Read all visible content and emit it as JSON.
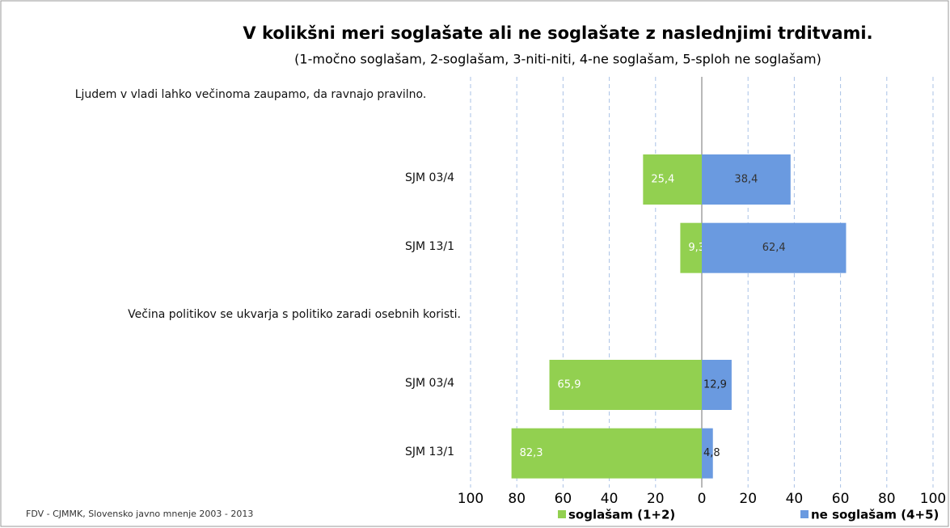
{
  "chart_data": {
    "type": "diverging-bar",
    "title": "V kolikšni meri soglašate ali ne soglašate z naslednjimi trditvami.",
    "subtitle": "(1-močno soglašam, 2-soglašam, 3-niti-niti, 4-ne soglašam, 5-sploh ne soglašam)",
    "source": "FDV - CJMMK, Slovensko javno mnenje 2003 - 2013",
    "categories": [
      "Ljudem v vladi lahko večinoma zaupamo, da ravnajo pravilno.",
      "SJM 03/4",
      "SJM 13/1",
      "Večina politikov se ukvarja s politiko zaradi osebnih koristi.",
      "SJM 03/4",
      "SJM 13/1"
    ],
    "series": [
      {
        "name": "soglašam (1+2)",
        "color": "#92d050",
        "values": [
          null,
          -25.4,
          -9.3,
          null,
          -65.9,
          -82.3
        ],
        "value_labels": [
          null,
          "25,4",
          "9,3",
          null,
          "65,9",
          "82,3"
        ]
      },
      {
        "name": "ne soglašam (4+5)",
        "color": "#6a9ae0",
        "values": [
          null,
          38.4,
          62.4,
          null,
          12.9,
          4.8
        ],
        "value_labels": [
          null,
          "38,4",
          "62,4",
          null,
          "12,9",
          "4,8"
        ]
      }
    ],
    "xlim": [
      -100,
      100
    ],
    "xticks": [
      {
        "value": -100,
        "label": "100"
      },
      {
        "value": -80,
        "label": "80"
      },
      {
        "value": -60,
        "label": "60"
      },
      {
        "value": -40,
        "label": "40"
      },
      {
        "value": -20,
        "label": "20"
      },
      0,
      20,
      40,
      60,
      80,
      100
    ],
    "grid": true,
    "legend": "bottom"
  }
}
